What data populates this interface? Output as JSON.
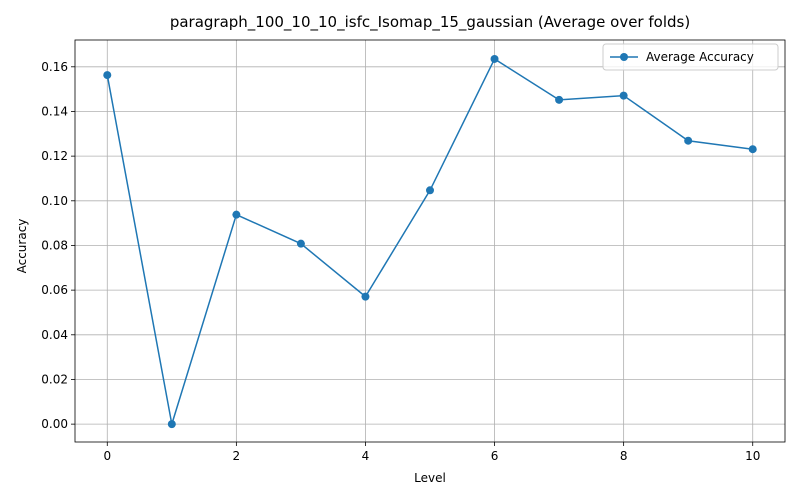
{
  "chart_data": {
    "type": "line",
    "title": "paragraph_100_10_10_isfc_Isomap_15_gaussian (Average over folds)",
    "xlabel": "Level",
    "ylabel": "Accuracy",
    "xlim": [
      -0.5,
      10.5
    ],
    "ylim": [
      -0.008,
      0.172
    ],
    "x_ticks": [
      0,
      2,
      4,
      6,
      8,
      10
    ],
    "x_tick_labels": [
      "0",
      "2",
      "4",
      "6",
      "8",
      "10"
    ],
    "y_ticks": [
      0.0,
      0.02,
      0.04,
      0.06,
      0.08,
      0.1,
      0.12,
      0.14,
      0.16
    ],
    "y_tick_labels": [
      "0.00",
      "0.02",
      "0.04",
      "0.06",
      "0.08",
      "0.10",
      "0.12",
      "0.14",
      "0.16"
    ],
    "grid": true,
    "legend_position": "upper-right",
    "series": [
      {
        "name": "Average Accuracy",
        "color": "#1f77b4",
        "marker": "circle",
        "x": [
          0,
          1,
          2,
          3,
          4,
          5,
          6,
          7,
          8,
          9,
          10
        ],
        "y": [
          0.1563,
          0.0,
          0.0938,
          0.0808,
          0.0571,
          0.1047,
          0.1635,
          0.1452,
          0.1471,
          0.1269,
          0.1231
        ]
      }
    ]
  }
}
